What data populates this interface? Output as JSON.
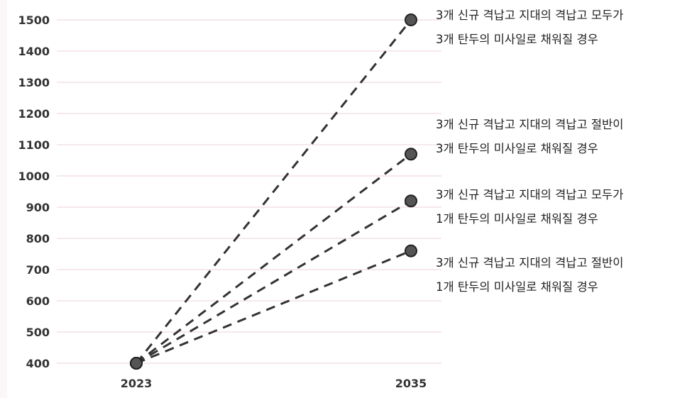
{
  "chart_data": {
    "type": "line",
    "title": "",
    "xlabel": "",
    "ylabel": "",
    "x_ticks": [
      "2023",
      "2035"
    ],
    "y_ticks": [
      400,
      500,
      600,
      700,
      800,
      900,
      1000,
      1100,
      1200,
      1300,
      1400,
      1500
    ],
    "ylim": [
      400,
      1500
    ],
    "grid": true,
    "line_style": "dashed",
    "colors": {
      "line": "#333333",
      "marker": "#555555",
      "grid": "#f5e8ee"
    },
    "series": [
      {
        "x": [
          "2023",
          "2035"
        ],
        "values": [
          400,
          1500
        ],
        "annotation": [
          "3개 신규 격납고 지대의 격납고 모두가",
          "3개 탄두의 미사일로 채워질 경우"
        ]
      },
      {
        "x": [
          "2023",
          "2035"
        ],
        "values": [
          400,
          1070
        ],
        "annotation": [
          "3개 신규 격납고 지대의 격납고 절반이",
          "3개 탄두의 미사일로 채워질 경우"
        ]
      },
      {
        "x": [
          "2023",
          "2035"
        ],
        "values": [
          400,
          920
        ],
        "annotation": [
          "3개 신규 격납고 지대의 격납고 모두가",
          "1개 탄두의 미사일로 채워질 경우"
        ]
      },
      {
        "x": [
          "2023",
          "2035"
        ],
        "values": [
          400,
          760
        ],
        "annotation": [
          "3개 신규 격납고 지대의 격납고 절반이",
          "1개 탄두의 미사일로 채워질 경우"
        ]
      }
    ]
  }
}
